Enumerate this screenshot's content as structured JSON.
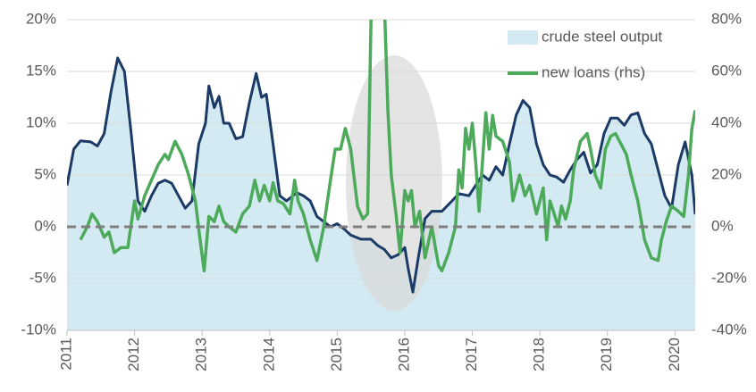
{
  "chart_data": {
    "type": "area-line",
    "xlim": [
      2011,
      2020.3
    ],
    "xticks": [
      2011,
      2012,
      2013,
      2014,
      2015,
      2016,
      2017,
      2018,
      2019,
      2020
    ],
    "ylim": [
      -10,
      20
    ],
    "yticks": [
      {
        "value": -10,
        "label": "-10%"
      },
      {
        "value": -5,
        "label": "-5%"
      },
      {
        "value": 0,
        "label": "0%"
      },
      {
        "value": 5,
        "label": "5%"
      },
      {
        "value": 10,
        "label": "10%"
      },
      {
        "value": 15,
        "label": "15%"
      },
      {
        "value": 20,
        "label": "20%"
      }
    ],
    "y2lim": [
      -40,
      80
    ],
    "y2ticks": [
      {
        "value": -40,
        "label": "-40%"
      },
      {
        "value": -20,
        "label": "-20%"
      },
      {
        "value": 0,
        "label": "0%"
      },
      {
        "value": 20,
        "label": "20%"
      },
      {
        "value": 40,
        "label": "40%"
      },
      {
        "value": 60,
        "label": "60%"
      },
      {
        "value": 80,
        "label": "80%"
      }
    ],
    "grid": true,
    "legend": "top-right",
    "series": [
      {
        "name": "crude steel output",
        "type": "area",
        "color": "#d3eaf2",
        "line_color": "#1c3a66",
        "x": [
          2011.0,
          2011.1,
          2011.2,
          2011.35,
          2011.45,
          2011.55,
          2011.65,
          2011.75,
          2011.85,
          2011.95,
          2012.05,
          2012.15,
          2012.25,
          2012.35,
          2012.45,
          2012.55,
          2012.65,
          2012.75,
          2012.85,
          2012.95,
          2013.05,
          2013.1,
          2013.18,
          2013.25,
          2013.32,
          2013.4,
          2013.5,
          2013.6,
          2013.7,
          2013.8,
          2013.88,
          2013.95,
          2014.05,
          2014.15,
          2014.25,
          2014.4,
          2014.5,
          2014.6,
          2014.7,
          2014.8,
          2014.9,
          2015.0,
          2015.1,
          2015.2,
          2015.35,
          2015.5,
          2015.6,
          2015.7,
          2015.8,
          2015.9,
          2016.0,
          2016.05,
          2016.12,
          2016.2,
          2016.3,
          2016.4,
          2016.55,
          2016.7,
          2016.8,
          2016.95,
          2017.05,
          2017.15,
          2017.25,
          2017.35,
          2017.45,
          2017.55,
          2017.65,
          2017.75,
          2017.85,
          2017.95,
          2018.05,
          2018.15,
          2018.25,
          2018.35,
          2018.45,
          2018.55,
          2018.65,
          2018.75,
          2018.85,
          2018.95,
          2019.05,
          2019.15,
          2019.25,
          2019.35,
          2019.45,
          2019.55,
          2019.65,
          2019.75,
          2019.85,
          2019.95,
          2020.05,
          2020.15,
          2020.25,
          2020.3
        ],
        "values": [
          4,
          7.5,
          8.3,
          8.2,
          7.8,
          9,
          13,
          16.3,
          15,
          9,
          2.5,
          1.5,
          3,
          4.2,
          4.5,
          4.2,
          3,
          1.8,
          2.5,
          8,
          10,
          13.6,
          11.5,
          12.6,
          10,
          10,
          8.5,
          8.7,
          12,
          14.8,
          12.5,
          12.8,
          8,
          3,
          2.5,
          3.3,
          3,
          2.5,
          1,
          0.5,
          0,
          0.3,
          -0.2,
          -0.8,
          -1.2,
          -1.2,
          -1.8,
          -2.2,
          -3,
          -2.7,
          -2,
          -4,
          -6.3,
          -3,
          0.8,
          1.5,
          1.5,
          2.5,
          3.2,
          3,
          4,
          5,
          4.5,
          5.8,
          5,
          8,
          10.8,
          12.2,
          11.5,
          8,
          6,
          5,
          4.8,
          4.3,
          5.5,
          6.5,
          7.2,
          5.2,
          6,
          9,
          10.5,
          10.5,
          9.8,
          10.8,
          11,
          9,
          8,
          5.5,
          3,
          1.8,
          6,
          8.2,
          5,
          1.2
        ]
      },
      {
        "name": "new loans (rhs)",
        "type": "line",
        "axis": "y2",
        "color": "#4caa5a",
        "x": [
          2011.2,
          2011.3,
          2011.37,
          2011.45,
          2011.55,
          2011.62,
          2011.7,
          2011.8,
          2011.9,
          2012.0,
          2012.05,
          2012.15,
          2012.25,
          2012.35,
          2012.45,
          2012.5,
          2012.6,
          2012.7,
          2012.8,
          2012.9,
          2012.97,
          2013.03,
          2013.1,
          2013.18,
          2013.25,
          2013.32,
          2013.4,
          2013.5,
          2013.6,
          2013.7,
          2013.78,
          2013.85,
          2013.92,
          2014.0,
          2014.05,
          2014.12,
          2014.2,
          2014.3,
          2014.37,
          2014.42,
          2014.5,
          2014.6,
          2014.7,
          2014.8,
          2014.9,
          2014.97,
          2015.05,
          2015.12,
          2015.2,
          2015.3,
          2015.38,
          2015.45,
          2015.5,
          2015.55,
          2015.7,
          2015.75,
          2015.8,
          2015.87,
          2015.93,
          2016.0,
          2016.05,
          2016.1,
          2016.15,
          2016.22,
          2016.3,
          2016.4,
          2016.5,
          2016.55,
          2016.65,
          2016.75,
          2016.8,
          2016.85,
          2016.9,
          2016.95,
          2017.0,
          2017.05,
          2017.1,
          2017.2,
          2017.25,
          2017.3,
          2017.35,
          2017.45,
          2017.55,
          2017.6,
          2017.7,
          2017.78,
          2017.85,
          2017.95,
          2018.05,
          2018.1,
          2018.15,
          2018.2,
          2018.27,
          2018.32,
          2018.38,
          2018.45,
          2018.5,
          2018.6,
          2018.7,
          2018.75,
          2018.82,
          2018.9,
          2018.97,
          2019.05,
          2019.12,
          2019.2,
          2019.28,
          2019.35,
          2019.45,
          2019.55,
          2019.65,
          2019.75,
          2019.8,
          2019.87,
          2019.95,
          2020.05,
          2020.13,
          2020.2,
          2020.25,
          2020.3
        ],
        "values": [
          -5,
          0,
          5,
          2,
          -4,
          -2,
          -10,
          -8,
          -8,
          10,
          3,
          12,
          18,
          24,
          28,
          26,
          33,
          28,
          20,
          10,
          -5,
          -17,
          4,
          2,
          8,
          2,
          0,
          -2,
          5,
          8,
          18,
          10,
          16,
          10,
          17,
          10,
          9,
          5,
          18,
          10,
          5,
          -5,
          -13,
          0,
          18,
          30,
          30,
          38,
          30,
          8,
          3,
          5,
          80,
          85,
          85,
          45,
          20,
          5,
          -10,
          14,
          10,
          14,
          0,
          6,
          -12,
          0,
          -15,
          -17,
          -10,
          0,
          22,
          15,
          38,
          30,
          40,
          25,
          6,
          44,
          30,
          43,
          35,
          33,
          25,
          10,
          20,
          12,
          16,
          5,
          15,
          -5,
          10,
          6,
          0,
          8,
          3,
          10,
          22,
          33,
          36,
          30,
          20,
          15,
          30,
          35,
          36,
          32,
          28,
          20,
          10,
          -5,
          -12,
          -13,
          -5,
          2,
          8,
          6,
          4,
          20,
          38,
          45
        ]
      }
    ]
  }
}
